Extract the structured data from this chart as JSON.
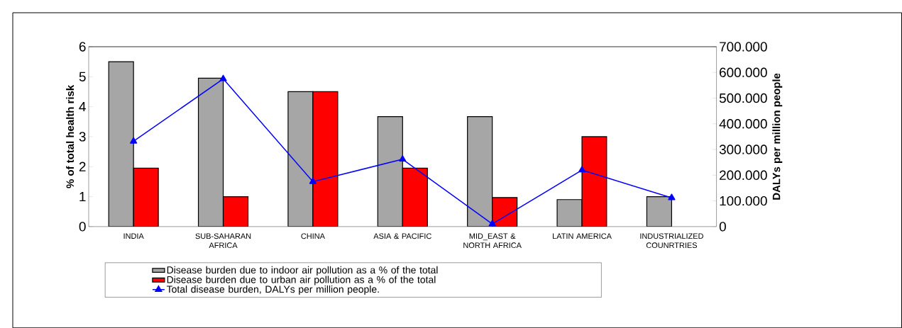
{
  "chart_data": {
    "type": "bar",
    "ylabel": "% of total health risk",
    "y2label": "DALYs per million people",
    "categories": [
      "INDIA",
      "SUB-SAHARAN AFRICA",
      "CHINA",
      "ASIA & PACIFIC",
      "MID_EAST & NORTH AFRICA",
      "LATIN AMERICA",
      "INDUSTRIALIZED COUNRTRIES"
    ],
    "series": [
      {
        "name": "Disease burden due to indoor air pollution as a % of the total",
        "color": "#a6a6a6",
        "values": [
          5.5,
          4.95,
          4.5,
          3.67,
          3.67,
          0.9,
          1.0
        ]
      },
      {
        "name": "Disease burden due to urban air pollution as a % of the total",
        "color": "#ff0000",
        "values": [
          1.95,
          1.0,
          4.5,
          1.95,
          0.97,
          3.0,
          null
        ]
      },
      {
        "name": "Total disease burden, DALYs per million people.",
        "type": "line",
        "axis": "y2",
        "color": "#0000ff",
        "marker": "triangle",
        "values": [
          332000,
          575000,
          175000,
          262000,
          10000,
          220000,
          112000
        ]
      }
    ],
    "ylim": [
      0,
      6
    ],
    "yticks": [
      0,
      1,
      2,
      3,
      4,
      5,
      6
    ],
    "y2lim": [
      0,
      700000
    ],
    "y2ticks": [
      0,
      {
        "value": 100000,
        "label": "100.000"
      },
      {
        "value": 200000,
        "label": "200.000"
      },
      {
        "value": 300000,
        "label": "300.000"
      },
      {
        "value": 400000,
        "label": "400.000"
      },
      {
        "value": 500000,
        "label": "500.000"
      },
      {
        "value": 600000,
        "label": "600.000"
      },
      {
        "value": 700000,
        "label": "700.000"
      }
    ],
    "grid": false,
    "legend": "bottom"
  }
}
